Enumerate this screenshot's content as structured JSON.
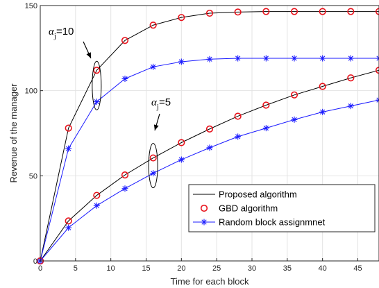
{
  "chart_data": {
    "type": "line",
    "title": "",
    "xlabel": "Time for each block",
    "ylabel": "Revenue of the manager",
    "xlim": [
      0,
      48
    ],
    "ylim": [
      0,
      150
    ],
    "xticks": [
      0,
      5,
      10,
      15,
      20,
      25,
      30,
      35,
      40,
      45
    ],
    "yticks": [
      0,
      50,
      100,
      150
    ],
    "grid": true,
    "legend_position": "bottom-right",
    "legend": [
      {
        "label": "Proposed algorithm",
        "color": "#000000",
        "style": "line"
      },
      {
        "label": "GBD algorithm",
        "color": "#e8121b",
        "style": "circle"
      },
      {
        "label": "Random block assignmnet",
        "color": "#1a1aff",
        "style": "line-star"
      }
    ],
    "groups": [
      {
        "annotation": {
          "symbol": "α",
          "subscript": "j",
          "value": "=10"
        },
        "x": [
          0,
          4,
          8,
          12,
          16,
          20,
          24,
          28,
          32,
          36,
          40,
          44,
          48
        ],
        "series": [
          {
            "name": "Proposed algorithm",
            "color": "#000000",
            "values": [
              0,
              78,
              112,
              129.5,
              138.5,
              143,
              145.5,
              146.2,
              146.5,
              146.5,
              146.5,
              146.5,
              146.5
            ]
          },
          {
            "name": "GBD algorithm",
            "color": "#e8121b",
            "values": [
              0,
              78,
              112,
              129.5,
              138.5,
              143,
              145.5,
              146.2,
              146.5,
              146.5,
              146.5,
              146.5,
              146.5
            ]
          },
          {
            "name": "Random block assignmnet",
            "color": "#1a1aff",
            "values": [
              0,
              66,
              93.5,
              107,
              114,
              117,
              118.5,
              119,
              119,
              119,
              119,
              119,
              119
            ]
          }
        ]
      },
      {
        "annotation": {
          "symbol": "α",
          "subscript": "j",
          "value": "=5"
        },
        "x": [
          0,
          4,
          8,
          12,
          16,
          20,
          24,
          28,
          32,
          36,
          40,
          44,
          48
        ],
        "series": [
          {
            "name": "Proposed algorithm",
            "color": "#000000",
            "values": [
              0,
              23.5,
              38.5,
              50.5,
              60.5,
              69.5,
              77.5,
              85,
              91.5,
              97.5,
              102.5,
              107.5,
              112
            ]
          },
          {
            "name": "GBD algorithm",
            "color": "#e8121b",
            "values": [
              0,
              23.5,
              38.5,
              50.5,
              60.5,
              69.5,
              77.5,
              85,
              91.5,
              97.5,
              102.5,
              107.5,
              112
            ]
          },
          {
            "name": "Random block assignmnet",
            "color": "#1a1aff",
            "values": [
              0,
              19.5,
              32.5,
              42.5,
              51.5,
              59.5,
              66.5,
              73,
              78,
              83,
              87.5,
              91,
              94.5
            ]
          }
        ]
      }
    ]
  }
}
